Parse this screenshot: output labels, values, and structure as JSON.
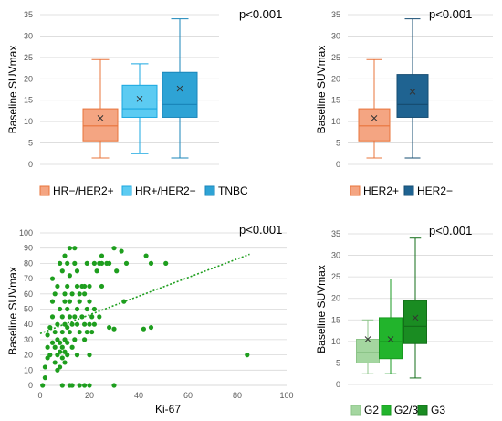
{
  "chart_data": [
    {
      "type": "box",
      "ylabel": "Baseline SUVmax",
      "ylim": [
        0,
        35
      ],
      "yticks": [
        0,
        5,
        10,
        15,
        20,
        25,
        30,
        35
      ],
      "annotation": "p<0.001",
      "legend_position": "bottom",
      "series": [
        {
          "name": "HR−/HER2+",
          "color": "#F4A582",
          "edge": "#E8743B",
          "min": 1.5,
          "q1": 5.5,
          "median": 9,
          "q3": 13,
          "max": 24.5,
          "mean": 10.8
        },
        {
          "name": "HR+/HER2−",
          "color": "#5CCBF2",
          "edge": "#1AA7E0",
          "min": 2.5,
          "q1": 11,
          "median": 13,
          "q3": 18.5,
          "max": 23.5,
          "mean": 15.3
        },
        {
          "name": "TNBC",
          "color": "#2EA3D5",
          "edge": "#1A86BA",
          "min": 1.5,
          "q1": 11,
          "median": 14,
          "q3": 21.5,
          "max": 34,
          "mean": 17.7
        }
      ]
    },
    {
      "type": "box",
      "ylabel": "Baseline SUVmax",
      "ylim": [
        0,
        35
      ],
      "yticks": [
        0,
        5,
        10,
        15,
        20,
        25,
        30,
        35
      ],
      "annotation": "p<0.001",
      "legend_position": "bottom",
      "series": [
        {
          "name": "HER2+",
          "color": "#F4A582",
          "edge": "#E8743B",
          "min": 1.5,
          "q1": 5.5,
          "median": 9,
          "q3": 13,
          "max": 24.5,
          "mean": 10.8
        },
        {
          "name": "HER2−",
          "color": "#1F6391",
          "edge": "#164D72",
          "min": 1.5,
          "q1": 11,
          "median": 14,
          "q3": 21,
          "max": 34,
          "mean": 17
        }
      ]
    },
    {
      "type": "scatter",
      "xlabel": "Ki-67",
      "ylabel": "Baseline SUVmax",
      "xlim": [
        0,
        100
      ],
      "ylim": [
        0,
        100
      ],
      "xticks": [
        0,
        20,
        40,
        60,
        80,
        100
      ],
      "yticks": [
        0,
        10,
        20,
        30,
        40,
        50,
        60,
        70,
        80,
        90,
        100
      ],
      "annotation": "p<0.001",
      "color": "#1E9E1E",
      "trendline": {
        "x": [
          0,
          85
        ],
        "y": [
          34,
          86
        ]
      },
      "points": [
        [
          1,
          0
        ],
        [
          2,
          5
        ],
        [
          2,
          12
        ],
        [
          3,
          18
        ],
        [
          3,
          25
        ],
        [
          3,
          33
        ],
        [
          4,
          20
        ],
        [
          4,
          38
        ],
        [
          5,
          28
        ],
        [
          5,
          45
        ],
        [
          5,
          55
        ],
        [
          5,
          70
        ],
        [
          6,
          15
        ],
        [
          6,
          25
        ],
        [
          6,
          35
        ],
        [
          6,
          60
        ],
        [
          7,
          10
        ],
        [
          7,
          20
        ],
        [
          7,
          30
        ],
        [
          7,
          40
        ],
        [
          7,
          65
        ],
        [
          8,
          12
        ],
        [
          8,
          22
        ],
        [
          8,
          28
        ],
        [
          8,
          50
        ],
        [
          8,
          80
        ],
        [
          9,
          0
        ],
        [
          9,
          18
        ],
        [
          9,
          25
        ],
        [
          9,
          35
        ],
        [
          9,
          45
        ],
        [
          9,
          75
        ],
        [
          10,
          15
        ],
        [
          10,
          22
        ],
        [
          10,
          30
        ],
        [
          10,
          40
        ],
        [
          10,
          55
        ],
        [
          10,
          60
        ],
        [
          10,
          85
        ],
        [
          11,
          20
        ],
        [
          11,
          28
        ],
        [
          11,
          38
        ],
        [
          11,
          50
        ],
        [
          11,
          65
        ],
        [
          11,
          80
        ],
        [
          12,
          0
        ],
        [
          12,
          35
        ],
        [
          12,
          45
        ],
        [
          12,
          55
        ],
        [
          12,
          72
        ],
        [
          12,
          90
        ],
        [
          13,
          0
        ],
        [
          13,
          25
        ],
        [
          13,
          40
        ],
        [
          13,
          60
        ],
        [
          14,
          30
        ],
        [
          14,
          45
        ],
        [
          14,
          80
        ],
        [
          14,
          90
        ],
        [
          15,
          20
        ],
        [
          15,
          40
        ],
        [
          15,
          50
        ],
        [
          15,
          65
        ],
        [
          15,
          75
        ],
        [
          16,
          0
        ],
        [
          16,
          35
        ],
        [
          16,
          55
        ],
        [
          16,
          60
        ],
        [
          17,
          45
        ],
        [
          17,
          65
        ],
        [
          18,
          0
        ],
        [
          18,
          30
        ],
        [
          18,
          40
        ],
        [
          18,
          60
        ],
        [
          18,
          65
        ],
        [
          19,
          35
        ],
        [
          19,
          50
        ],
        [
          19,
          80
        ],
        [
          20,
          0
        ],
        [
          20,
          20
        ],
        [
          20,
          40
        ],
        [
          20,
          55
        ],
        [
          20,
          65
        ],
        [
          21,
          35
        ],
        [
          21,
          45
        ],
        [
          22,
          40
        ],
        [
          22,
          50
        ],
        [
          22,
          80
        ],
        [
          23,
          75
        ],
        [
          24,
          45
        ],
        [
          24,
          80
        ],
        [
          25,
          65
        ],
        [
          25,
          80
        ],
        [
          25,
          85
        ],
        [
          27,
          80
        ],
        [
          28,
          38
        ],
        [
          28,
          80
        ],
        [
          30,
          0
        ],
        [
          30,
          37
        ],
        [
          30,
          90
        ],
        [
          31,
          75
        ],
        [
          33,
          88
        ],
        [
          34,
          55
        ],
        [
          35,
          80
        ],
        [
          42,
          37
        ],
        [
          43,
          85
        ],
        [
          45,
          38
        ],
        [
          45,
          80
        ],
        [
          51,
          80
        ],
        [
          84,
          20
        ]
      ]
    },
    {
      "type": "box",
      "ylabel": "Baseline SUVmax",
      "ylim": [
        0,
        35
      ],
      "yticks": [
        0,
        5,
        10,
        15,
        20,
        25,
        30,
        35
      ],
      "annotation": "p<0.001",
      "legend_position": "bottom",
      "series": [
        {
          "name": "G2",
          "color": "#A4D6A0",
          "edge": "#8CC488",
          "min": 2.5,
          "q1": 5,
          "median": 7.5,
          "q3": 10.5,
          "max": 15,
          "mean": 10.5
        },
        {
          "name": "G2/3",
          "color": "#22B42C",
          "edge": "#189A20",
          "min": 2.5,
          "q1": 6,
          "median": 10,
          "q3": 15.5,
          "max": 24.5,
          "mean": 10.5
        },
        {
          "name": "G3",
          "color": "#1A8C22",
          "edge": "#136E19",
          "min": 1.5,
          "q1": 9.5,
          "median": 13.5,
          "q3": 19.5,
          "max": 34,
          "mean": 15.5
        }
      ]
    }
  ]
}
